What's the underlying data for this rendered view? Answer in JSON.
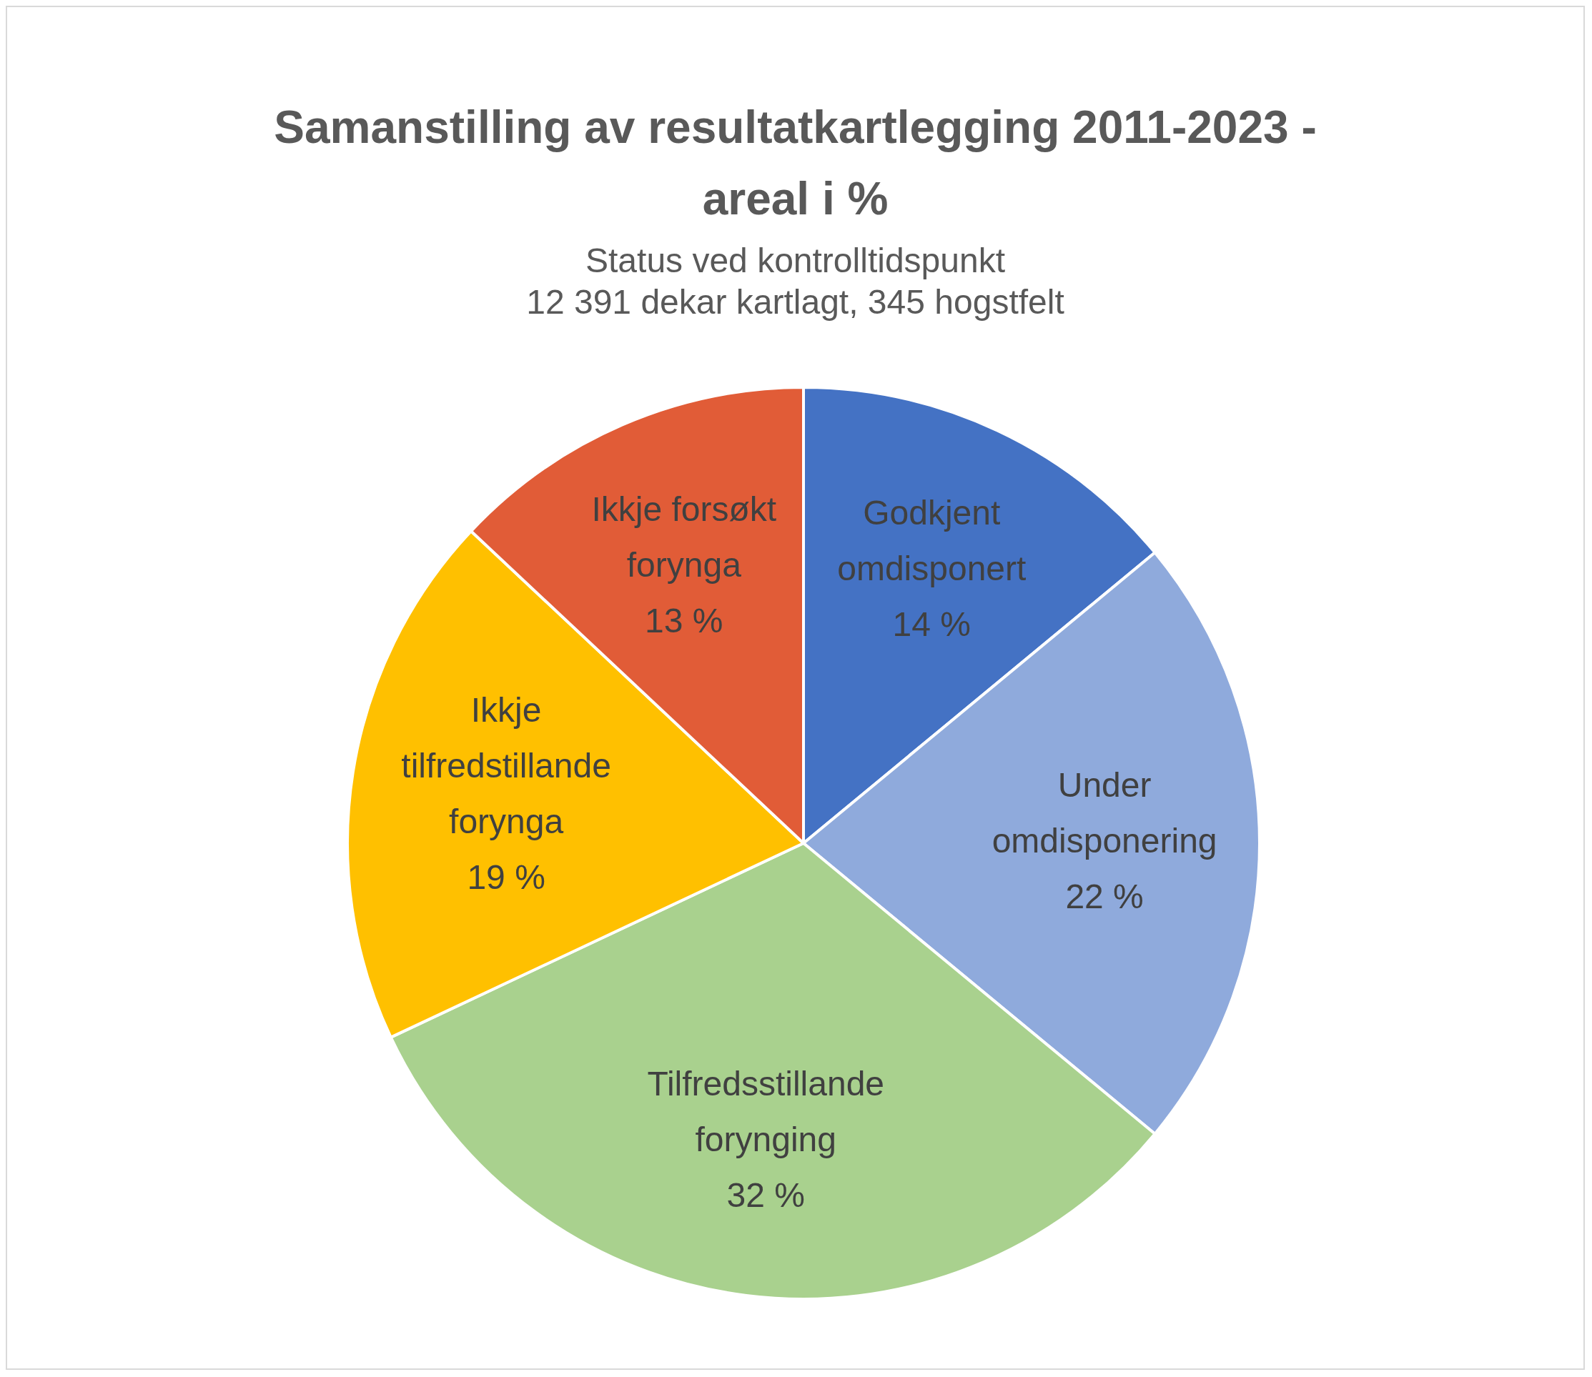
{
  "chart_data": {
    "type": "pie",
    "title": "Samanstilling av resultatkartlegging 2011-2023 - areal i %",
    "subtitle": "Status ved kontrolltidspunkt\n12 391 dekar kartlagt, 345 hogstfelt",
    "categories": [
      "Godkjent omdisponert",
      "Under omdisponering",
      "Tilfredsstillande forynging",
      "Ikkje tilfredstillande forynga",
      "Ikkje forsøkt forynga"
    ],
    "values": [
      14,
      22,
      32,
      19,
      13
    ],
    "value_labels": [
      "14 %",
      "22 %",
      "32 %",
      "19 %",
      "13 %"
    ],
    "colors": [
      "#4472c4",
      "#8faadc",
      "#a9d18e",
      "#ffc000",
      "#e15c37"
    ],
    "legend": false
  }
}
